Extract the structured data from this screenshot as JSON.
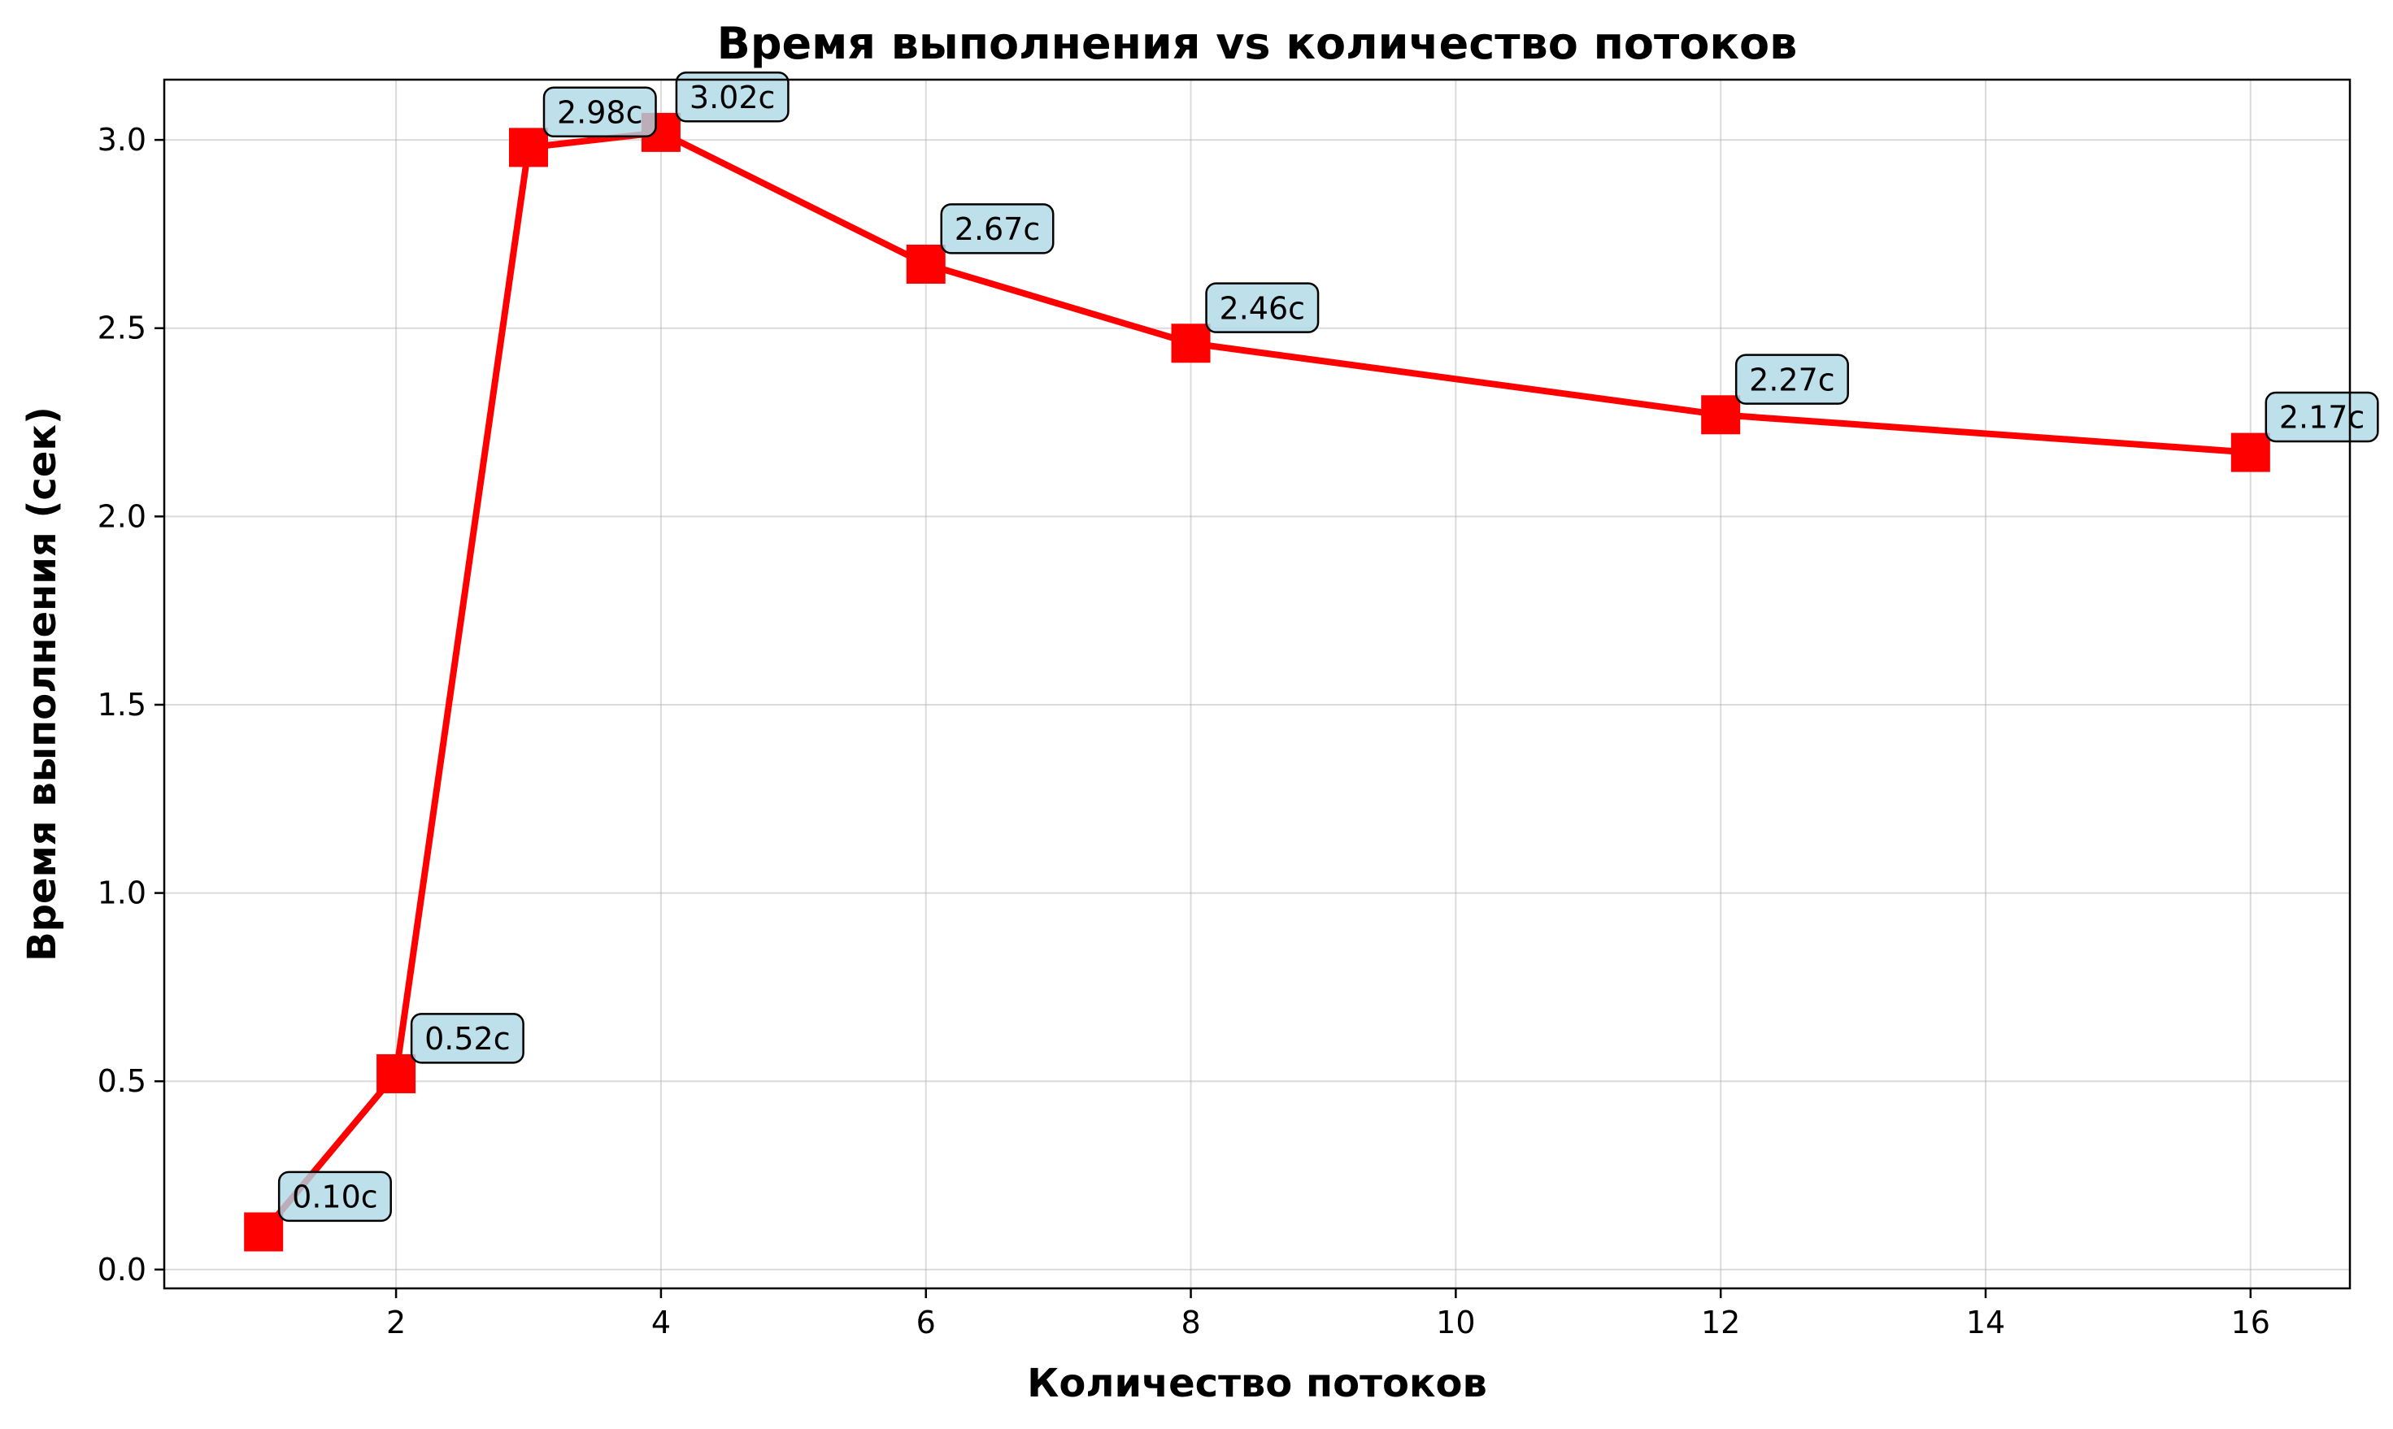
{
  "chart_data": {
    "type": "line",
    "title": "Время выполнения vs количество потоков",
    "xlabel": "Количество потоков",
    "ylabel": "Время выполнения (сек)",
    "xlim": [
      0.25,
      16.75
    ],
    "ylim": [
      -0.05,
      3.16
    ],
    "xticks": [
      2,
      4,
      6,
      8,
      10,
      12,
      14,
      16
    ],
    "xtick_labels": [
      "2",
      "4",
      "6",
      "8",
      "10",
      12,
      "14",
      "16"
    ],
    "yticks": [
      0.0,
      0.5,
      1.0,
      1.5,
      2.0,
      2.5,
      3.0
    ],
    "ytick_labels": [
      "0.0",
      "0.5",
      "1.0",
      "1.5",
      "2.0",
      "2.5",
      "3.0"
    ],
    "grid": true,
    "series": [
      {
        "color": "#ff0000",
        "marker": "square",
        "x": [
          1,
          2,
          3,
          4,
          6,
          8,
          12,
          16
        ],
        "y": [
          0.1,
          0.52,
          2.98,
          3.02,
          2.67,
          2.46,
          2.27,
          2.17
        ],
        "labels": [
          "0.10с",
          "0.52с",
          "2.98с",
          "3.02с",
          "2.67с",
          "2.46с",
          "2.27с",
          "2.17с"
        ]
      }
    ],
    "label_box_color": "#add8e6"
  }
}
